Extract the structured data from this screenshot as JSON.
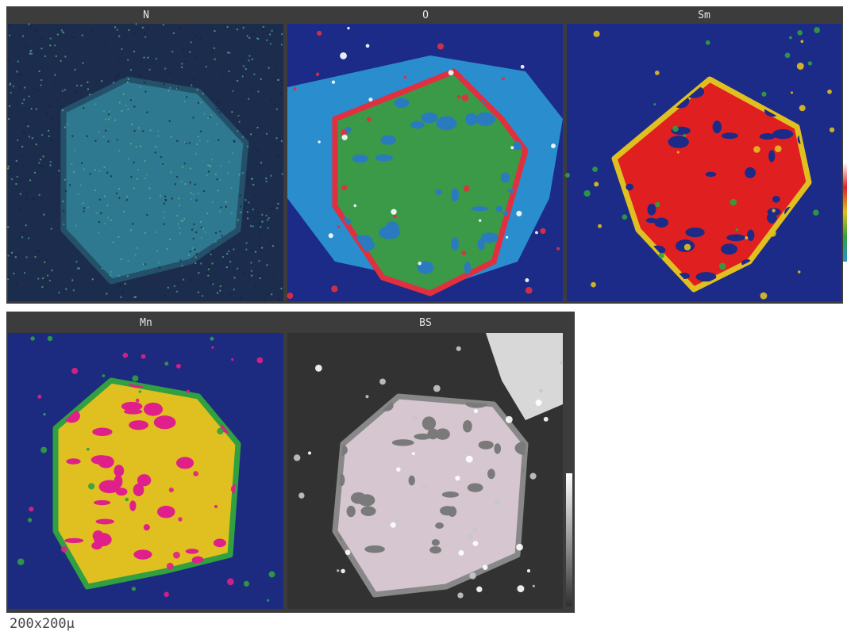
{
  "panels": [
    {
      "label": "N"
    },
    {
      "label": "O"
    },
    {
      "label": "Sm"
    },
    {
      "label": "Mn"
    },
    {
      "label": "BS"
    }
  ],
  "caption": "200x200µ"
}
